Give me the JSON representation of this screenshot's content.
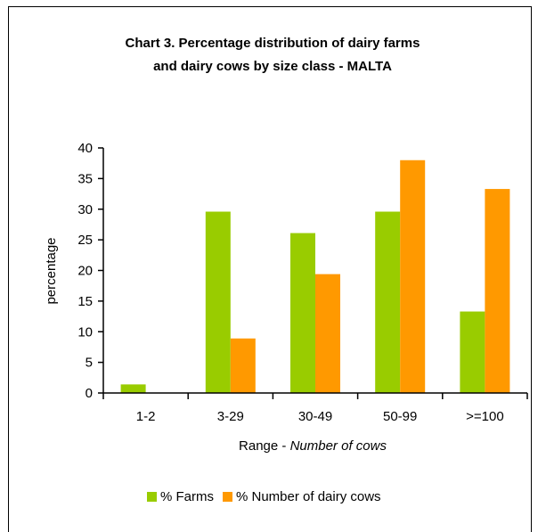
{
  "chart_data": {
    "type": "bar",
    "title_lines": [
      "Chart 3.  Percentage distribution of dairy farms",
      "and dairy cows by size class - MALTA"
    ],
    "xlabel": "Range - ",
    "xlabel_italic": "Number of cows",
    "ylabel": "percentage",
    "ylim": [
      0,
      40
    ],
    "yticks": [
      0,
      5,
      10,
      15,
      20,
      25,
      30,
      35,
      40
    ],
    "categories": [
      "1-2",
      "3-29",
      "30-49",
      "50-99",
      ">=100"
    ],
    "series": [
      {
        "name": "% Farms",
        "color": "#99cc00",
        "values": [
          1.4,
          29.6,
          26.1,
          29.6,
          13.3
        ]
      },
      {
        "name": "% Number of dairy cows",
        "color": "#ff9900",
        "values": [
          0,
          8.9,
          19.4,
          38.0,
          33.3
        ]
      }
    ],
    "legend_position": "bottom",
    "grid": false
  }
}
